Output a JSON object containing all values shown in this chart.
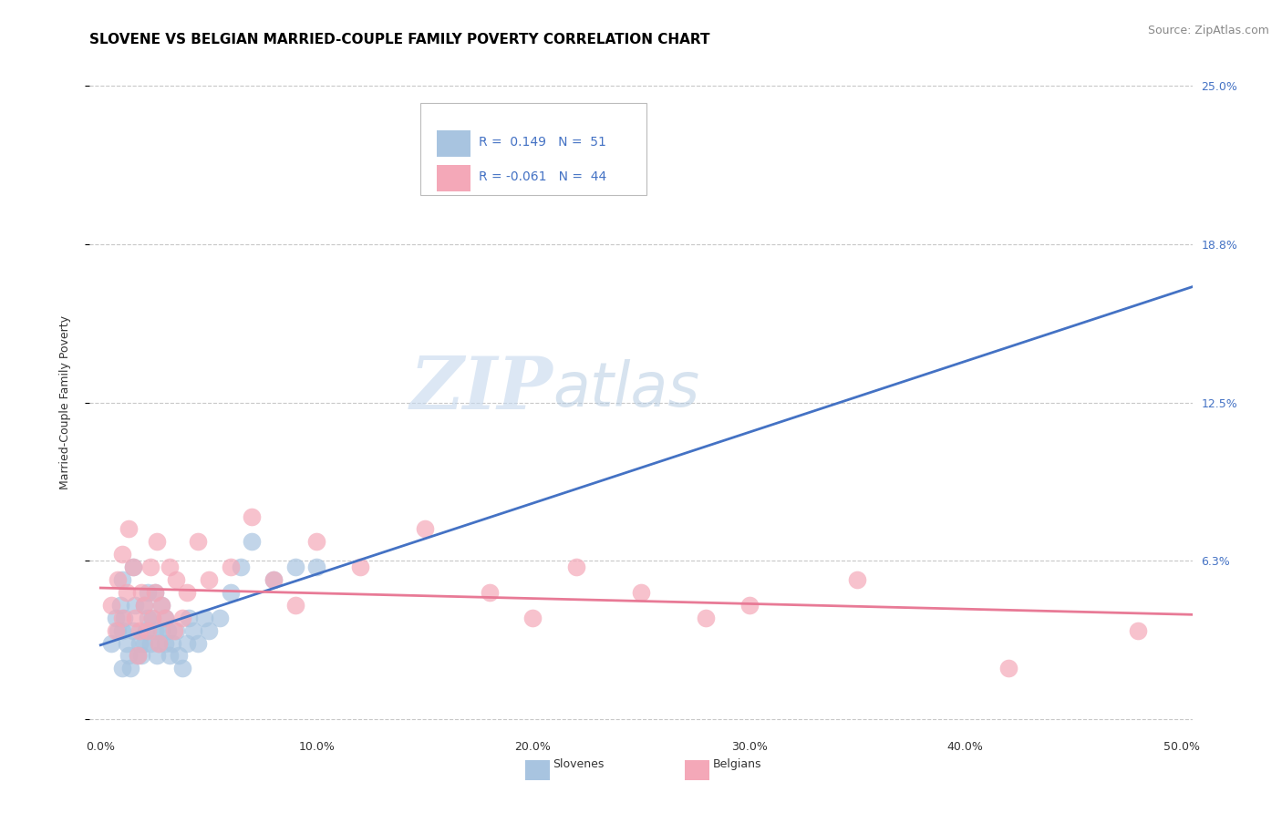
{
  "title": "SLOVENE VS BELGIAN MARRIED-COUPLE FAMILY POVERTY CORRELATION CHART",
  "source": "Source: ZipAtlas.com",
  "ylabel": "Married-Couple Family Poverty",
  "xlim": [
    -0.005,
    0.505
  ],
  "ylim": [
    -0.005,
    0.255
  ],
  "yticks": [
    0.0,
    0.0625,
    0.125,
    0.1875,
    0.25
  ],
  "ytick_labels": [
    "",
    "6.3%",
    "12.5%",
    "18.8%",
    "25.0%"
  ],
  "xtick_labels": [
    "0.0%",
    "",
    "10.0%",
    "",
    "20.0%",
    "",
    "30.0%",
    "",
    "40.0%",
    "",
    "50.0%"
  ],
  "xticks": [
    0.0,
    0.05,
    0.1,
    0.15,
    0.2,
    0.25,
    0.3,
    0.35,
    0.4,
    0.45,
    0.5
  ],
  "slovene_color": "#a8c4e0",
  "belgian_color": "#f4a8b8",
  "slovene_R": 0.149,
  "slovene_N": 51,
  "belgian_R": -0.061,
  "belgian_N": 44,
  "trend_blue_color": "#4472c4",
  "trend_pink_color": "#e87a96",
  "legend_text_color": "#4472c4",
  "watermark_zip": "ZIP",
  "watermark_atlas": "atlas",
  "background_color": "#ffffff",
  "grid_color": "#c8c8c8",
  "right_tick_color": "#4472c4",
  "slovene_points_x": [
    0.005,
    0.007,
    0.008,
    0.009,
    0.01,
    0.01,
    0.01,
    0.011,
    0.012,
    0.013,
    0.014,
    0.015,
    0.015,
    0.016,
    0.017,
    0.018,
    0.019,
    0.02,
    0.02,
    0.021,
    0.022,
    0.022,
    0.023,
    0.024,
    0.025,
    0.025,
    0.026,
    0.027,
    0.028,
    0.028,
    0.03,
    0.03,
    0.031,
    0.032,
    0.033,
    0.035,
    0.036,
    0.038,
    0.04,
    0.041,
    0.043,
    0.045,
    0.048,
    0.05,
    0.055,
    0.06,
    0.065,
    0.07,
    0.08,
    0.09,
    0.1
  ],
  "slovene_points_y": [
    0.03,
    0.04,
    0.035,
    0.045,
    0.02,
    0.035,
    0.055,
    0.04,
    0.03,
    0.025,
    0.02,
    0.035,
    0.06,
    0.045,
    0.025,
    0.03,
    0.025,
    0.03,
    0.045,
    0.035,
    0.04,
    0.05,
    0.03,
    0.04,
    0.035,
    0.05,
    0.025,
    0.03,
    0.035,
    0.045,
    0.03,
    0.04,
    0.035,
    0.025,
    0.03,
    0.035,
    0.025,
    0.02,
    0.03,
    0.04,
    0.035,
    0.03,
    0.04,
    0.035,
    0.04,
    0.05,
    0.06,
    0.07,
    0.055,
    0.06,
    0.06
  ],
  "belgian_points_x": [
    0.005,
    0.007,
    0.008,
    0.01,
    0.01,
    0.012,
    0.013,
    0.015,
    0.016,
    0.017,
    0.018,
    0.019,
    0.02,
    0.022,
    0.023,
    0.024,
    0.025,
    0.026,
    0.027,
    0.028,
    0.03,
    0.032,
    0.034,
    0.035,
    0.038,
    0.04,
    0.045,
    0.05,
    0.06,
    0.07,
    0.08,
    0.09,
    0.1,
    0.12,
    0.15,
    0.18,
    0.2,
    0.22,
    0.25,
    0.28,
    0.3,
    0.35,
    0.42,
    0.48
  ],
  "belgian_points_y": [
    0.045,
    0.035,
    0.055,
    0.04,
    0.065,
    0.05,
    0.075,
    0.06,
    0.04,
    0.025,
    0.035,
    0.05,
    0.045,
    0.035,
    0.06,
    0.04,
    0.05,
    0.07,
    0.03,
    0.045,
    0.04,
    0.06,
    0.035,
    0.055,
    0.04,
    0.05,
    0.07,
    0.055,
    0.06,
    0.08,
    0.055,
    0.045,
    0.07,
    0.06,
    0.075,
    0.05,
    0.04,
    0.06,
    0.05,
    0.04,
    0.045,
    0.055,
    0.02,
    0.035
  ],
  "title_fontsize": 11,
  "axis_label_fontsize": 9,
  "tick_fontsize": 9,
  "source_fontsize": 9,
  "legend_fontsize": 10,
  "watermark_fontsize_zip": 58,
  "watermark_fontsize_atlas": 48
}
